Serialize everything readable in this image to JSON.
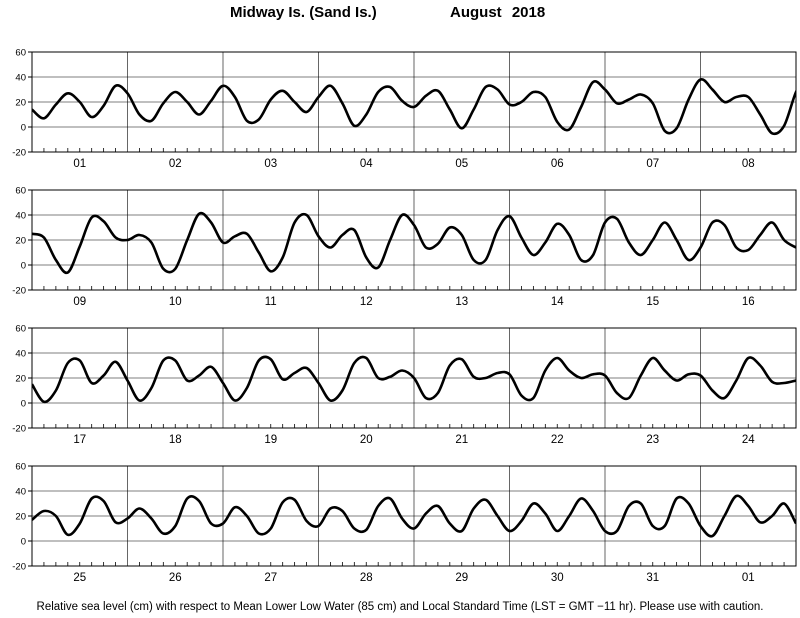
{
  "chart_data": {
    "type": "line",
    "title_location": "Midway Is. (Sand Is.)",
    "title_date": "August   2018",
    "footer": "Relative sea level (cm) with respect to Mean Lower Low Water (85 cm) and Local Standard Time (LST = GMT −11 hr). Please use with caution.",
    "ylim": [
      -20,
      60
    ],
    "yticks": [
      -20,
      0,
      20,
      40,
      60
    ],
    "grid": "daily vertical lines",
    "panels": [
      {
        "days": [
          "01",
          "02",
          "03",
          "04",
          "05",
          "06",
          "07",
          "08"
        ],
        "x": [
          0,
          3,
          6,
          9,
          12,
          15,
          18,
          21,
          24,
          27,
          30,
          33,
          36,
          39,
          42,
          45,
          48,
          51,
          54,
          57,
          60,
          63,
          66,
          69,
          72,
          75,
          78,
          81,
          84,
          87,
          90,
          93,
          96,
          99,
          102,
          105,
          108,
          111,
          114,
          117,
          120,
          123,
          126,
          129,
          132,
          135,
          138,
          141,
          144,
          147,
          150,
          153,
          156,
          159,
          162,
          165,
          168,
          171,
          174,
          177,
          180,
          183,
          186,
          189,
          192
        ],
        "y": [
          14,
          7,
          18,
          27,
          20,
          8,
          17,
          33,
          27,
          10,
          5,
          19,
          28,
          20,
          10,
          21,
          33,
          24,
          5,
          6,
          22,
          29,
          20,
          12,
          24,
          33,
          19,
          1,
          10,
          28,
          32,
          21,
          16,
          25,
          29,
          14,
          -1,
          14,
          32,
          30,
          18,
          20,
          28,
          24,
          4,
          -2,
          16,
          36,
          30,
          19,
          22,
          26,
          19,
          -3,
          -1,
          22,
          38,
          30,
          20,
          24,
          24,
          10,
          -5,
          1,
          28
        ],
        "tail_x": 194.5,
        "tail_y": 40
      },
      {
        "days": [
          "09",
          "10",
          "11",
          "12",
          "13",
          "14",
          "15",
          "16"
        ],
        "x": [
          0,
          3,
          6,
          9,
          12,
          15,
          18,
          21,
          24,
          27,
          30,
          33,
          36,
          39,
          42,
          45,
          48,
          51,
          54,
          57,
          60,
          63,
          66,
          69,
          72,
          75,
          78,
          81,
          84,
          87,
          90,
          93,
          96,
          99,
          102,
          105,
          108,
          111,
          114,
          117,
          120,
          123,
          126,
          129,
          132,
          135,
          138,
          141,
          144,
          147,
          150,
          153,
          156,
          159,
          162,
          165,
          168,
          171,
          174,
          177,
          180,
          183,
          186,
          189,
          192
        ],
        "y": [
          25,
          22,
          4,
          -6,
          15,
          38,
          35,
          22,
          20,
          24,
          18,
          -3,
          -3,
          20,
          41,
          34,
          18,
          23,
          25,
          10,
          -5,
          6,
          34,
          40,
          23,
          14,
          24,
          28,
          6,
          -2,
          20,
          40,
          32,
          14,
          17,
          30,
          24,
          4,
          4,
          28,
          39,
          22,
          8,
          18,
          33,
          24,
          4,
          8,
          34,
          37,
          18,
          8,
          20,
          34,
          20,
          4,
          14,
          34,
          32,
          14,
          12,
          24,
          34,
          20,
          14
        ]
      },
      {
        "days": [
          "17",
          "18",
          "19",
          "20",
          "21",
          "22",
          "23",
          "24"
        ],
        "x": [
          0,
          3,
          6,
          9,
          12,
          15,
          18,
          21,
          24,
          27,
          30,
          33,
          36,
          39,
          42,
          45,
          48,
          51,
          54,
          57,
          60,
          63,
          66,
          69,
          72,
          75,
          78,
          81,
          84,
          87,
          90,
          93,
          96,
          99,
          102,
          105,
          108,
          111,
          114,
          117,
          120,
          123,
          126,
          129,
          132,
          135,
          138,
          141,
          144,
          147,
          150,
          153,
          156,
          159,
          162,
          165,
          168,
          171,
          174,
          177,
          180,
          183,
          186,
          189,
          192
        ],
        "y": [
          15,
          1,
          10,
          32,
          34,
          16,
          22,
          33,
          18,
          2,
          12,
          34,
          34,
          18,
          22,
          29,
          16,
          2,
          12,
          34,
          35,
          19,
          24,
          28,
          16,
          2,
          10,
          32,
          36,
          20,
          21,
          26,
          20,
          4,
          8,
          30,
          35,
          21,
          20,
          24,
          23,
          6,
          4,
          26,
          36,
          26,
          20,
          23,
          22,
          8,
          4,
          22,
          36,
          26,
          18,
          23,
          22,
          10,
          4,
          18,
          36,
          30,
          17,
          16,
          18
        ]
      },
      {
        "days": [
          "25",
          "26",
          "27",
          "28",
          "29",
          "30",
          "31",
          "01"
        ],
        "x": [
          0,
          3,
          6,
          9,
          12,
          15,
          18,
          21,
          24,
          27,
          30,
          33,
          36,
          39,
          42,
          45,
          48,
          51,
          54,
          57,
          60,
          63,
          66,
          69,
          72,
          75,
          78,
          81,
          84,
          87,
          90,
          93,
          96,
          99,
          102,
          105,
          108,
          111,
          114,
          117,
          120,
          123,
          126,
          129,
          132,
          135,
          138,
          141,
          144,
          147,
          150,
          153,
          156,
          159,
          162,
          165,
          168,
          171,
          174,
          177,
          180,
          183,
          186,
          189,
          192
        ],
        "y": [
          17,
          24,
          20,
          5,
          14,
          34,
          32,
          15,
          18,
          26,
          18,
          6,
          12,
          34,
          32,
          14,
          14,
          27,
          20,
          6,
          10,
          31,
          33,
          16,
          12,
          26,
          24,
          10,
          9,
          28,
          34,
          18,
          10,
          22,
          28,
          14,
          8,
          26,
          33,
          20,
          8,
          16,
          30,
          22,
          8,
          20,
          34,
          24,
          8,
          8,
          28,
          30,
          12,
          12,
          34,
          30,
          12,
          4,
          20,
          36,
          28,
          15,
          20,
          30,
          14
        ]
      }
    ]
  }
}
